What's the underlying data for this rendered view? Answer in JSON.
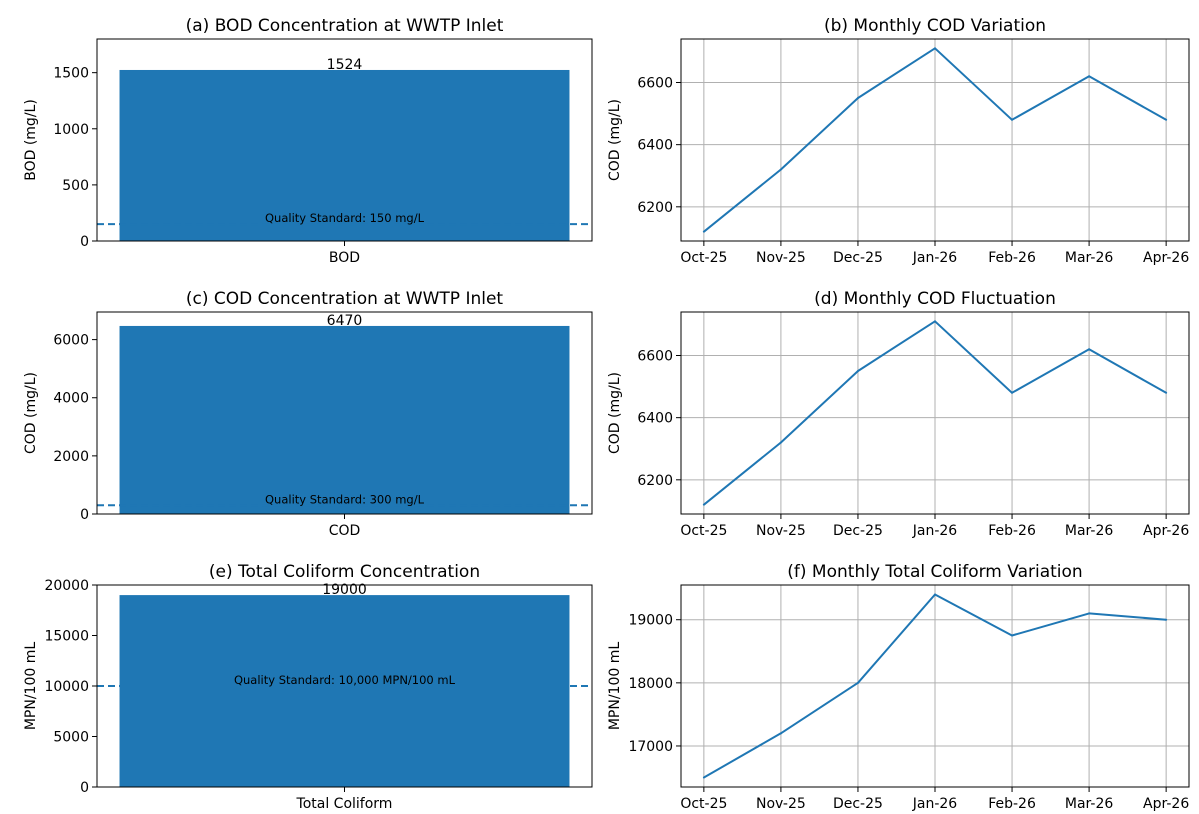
{
  "chart_data": [
    {
      "type": "bar",
      "title": "(a) BOD Concentration at WWTP Inlet",
      "categories": [
        "BOD"
      ],
      "values": [
        1524
      ],
      "data_labels": [
        "1524"
      ],
      "ylabel": "BOD (mg/L)",
      "ylim": [
        0,
        1800
      ],
      "yticks": [
        0,
        500,
        1000,
        1500
      ],
      "standard": {
        "value": 150,
        "label": "Quality Standard: 150 mg/L"
      },
      "bar_color": "#1f77b4",
      "grid": false
    },
    {
      "type": "line",
      "title": "(b) Monthly COD Variation",
      "x": [
        "Oct-25",
        "Nov-25",
        "Dec-25",
        "Jan-26",
        "Feb-26",
        "Mar-26",
        "Apr-26"
      ],
      "values": [
        6120,
        6320,
        6550,
        6710,
        6480,
        6620,
        6480
      ],
      "ylabel": "COD (mg/L)",
      "ylim": [
        6090,
        6740
      ],
      "yticks": [
        6200,
        6400,
        6600
      ],
      "line_color": "#1f77b4",
      "grid": true
    },
    {
      "type": "bar",
      "title": "(c) COD Concentration at WWTP Inlet",
      "categories": [
        "COD"
      ],
      "values": [
        6470
      ],
      "data_labels": [
        "6470"
      ],
      "ylabel": "COD (mg/L)",
      "ylim": [
        0,
        6950
      ],
      "yticks": [
        0,
        2000,
        4000,
        6000
      ],
      "standard": {
        "value": 300,
        "label": "Quality Standard: 300 mg/L"
      },
      "bar_color": "#1f77b4",
      "grid": false
    },
    {
      "type": "line",
      "title": "(d) Monthly COD Fluctuation",
      "x": [
        "Oct-25",
        "Nov-25",
        "Dec-25",
        "Jan-26",
        "Feb-26",
        "Mar-26",
        "Apr-26"
      ],
      "values": [
        6120,
        6320,
        6550,
        6710,
        6480,
        6620,
        6480
      ],
      "ylabel": "COD (mg/L)",
      "ylim": [
        6090,
        6740
      ],
      "yticks": [
        6200,
        6400,
        6600
      ],
      "line_color": "#1f77b4",
      "grid": true
    },
    {
      "type": "bar",
      "title": "(e) Total Coliform Concentration",
      "categories": [
        "Total Coliform"
      ],
      "values": [
        19000
      ],
      "data_labels": [
        "19000"
      ],
      "ylabel": "MPN/100 mL",
      "ylim": [
        0,
        20000
      ],
      "yticks": [
        0,
        5000,
        10000,
        15000,
        20000
      ],
      "standard": {
        "value": 10000,
        "label": "Quality Standard: 10,000 MPN/100 mL"
      },
      "bar_color": "#1f77b4",
      "grid": false
    },
    {
      "type": "line",
      "title": "(f) Monthly Total Coliform Variation",
      "x": [
        "Oct-25",
        "Nov-25",
        "Dec-25",
        "Jan-26",
        "Feb-26",
        "Mar-26",
        "Apr-26"
      ],
      "values": [
        16500,
        17200,
        18000,
        19400,
        18750,
        19100,
        19000
      ],
      "ylabel": "MPN/100 mL",
      "ylim": [
        16350,
        19550
      ],
      "yticks": [
        17000,
        18000,
        19000
      ],
      "line_color": "#1f77b4",
      "grid": true
    }
  ]
}
